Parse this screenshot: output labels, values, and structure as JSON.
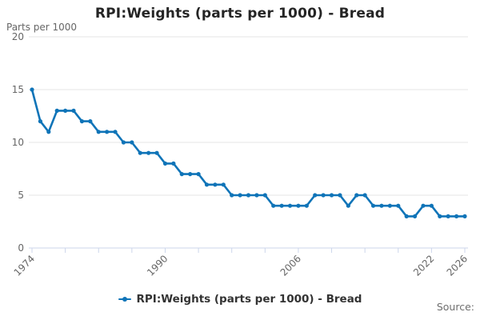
{
  "title": "RPI:Weights (parts per 1000) - Bread",
  "y_axis_title": "Parts per 1000",
  "source_label": "Source:",
  "legend": {
    "label": "RPI:Weights (parts per 1000) - Bread"
  },
  "colors": {
    "series": "#0f74b8",
    "grid": "#e6e6e6",
    "axis": "#ccd6eb",
    "tick_text": "#666666",
    "title_text": "#252525",
    "legend_text": "#333333"
  },
  "chart_data": {
    "type": "line",
    "title": "RPI:Weights (parts per 1000) - Bread",
    "xlabel": "",
    "ylabel": "Parts per 1000",
    "series_name": "RPI:Weights (parts per 1000) - Bread",
    "x": [
      1974,
      1975,
      1976,
      1977,
      1978,
      1979,
      1980,
      1981,
      1982,
      1983,
      1984,
      1985,
      1986,
      1987,
      1988,
      1989,
      1990,
      1991,
      1992,
      1993,
      1994,
      1995,
      1996,
      1997,
      1998,
      1999,
      2000,
      2001,
      2002,
      2003,
      2004,
      2005,
      2006,
      2007,
      2008,
      2009,
      2010,
      2011,
      2012,
      2013,
      2014,
      2015,
      2016,
      2017,
      2018,
      2019,
      2020,
      2021,
      2022,
      2023,
      2024,
      2025,
      2026
    ],
    "values": [
      15,
      12,
      11,
      13,
      13,
      13,
      12,
      12,
      11,
      11,
      11,
      10,
      10,
      9,
      9,
      9,
      8,
      8,
      7,
      7,
      7,
      6,
      6,
      6,
      5,
      5,
      5,
      5,
      5,
      4,
      4,
      4,
      4,
      4,
      5,
      5,
      5,
      5,
      4,
      5,
      5,
      4,
      4,
      4,
      4,
      3,
      3,
      4,
      4,
      3,
      3,
      3,
      3
    ],
    "xlim": [
      1974,
      2026
    ],
    "ylim": [
      0,
      20
    ],
    "yticks": [
      0,
      5,
      10,
      15,
      20
    ],
    "xticks": [
      1974,
      1978,
      1982,
      1986,
      1990,
      1994,
      1998,
      2002,
      2006,
      2010,
      2014,
      2018,
      2022,
      2026
    ],
    "xtick_labels_shown": [
      1974,
      1990,
      2006,
      2022,
      2026
    ],
    "grid": true,
    "markers": true,
    "legend_position": "bottom"
  }
}
